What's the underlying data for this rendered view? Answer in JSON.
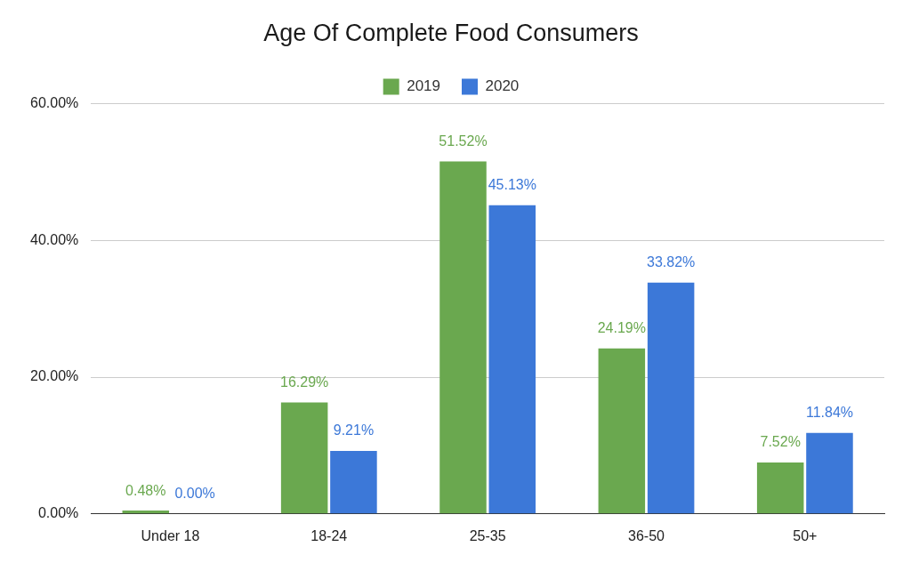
{
  "chart_data": {
    "type": "bar",
    "title": "Age Of Complete Food Consumers",
    "categories": [
      "Under 18",
      "18-24",
      "25-35",
      "36-50",
      "50+"
    ],
    "series": [
      {
        "name": "2019",
        "color": "#6aa84f",
        "values": [
          0.48,
          16.29,
          51.52,
          24.19,
          7.52
        ],
        "value_labels": [
          "0.48%",
          "16.29%",
          "51.52%",
          "24.19%",
          "7.52%"
        ]
      },
      {
        "name": "2020",
        "color": "#3c78d8",
        "values": [
          0,
          9.21,
          45.13,
          33.82,
          11.84
        ],
        "value_labels": [
          "0.00%",
          "9.21%",
          "45.13%",
          "33.82%",
          "11.84%"
        ]
      }
    ],
    "ylim": [
      0,
      60
    ],
    "yticks": [
      {
        "value": 0,
        "label": "0.00%"
      },
      {
        "value": 20,
        "label": "20.00%"
      },
      {
        "value": 40,
        "label": "40.00%"
      },
      {
        "value": 60,
        "label": "60.00%"
      }
    ],
    "grid": true,
    "legend": "top",
    "data_labels": true
  }
}
